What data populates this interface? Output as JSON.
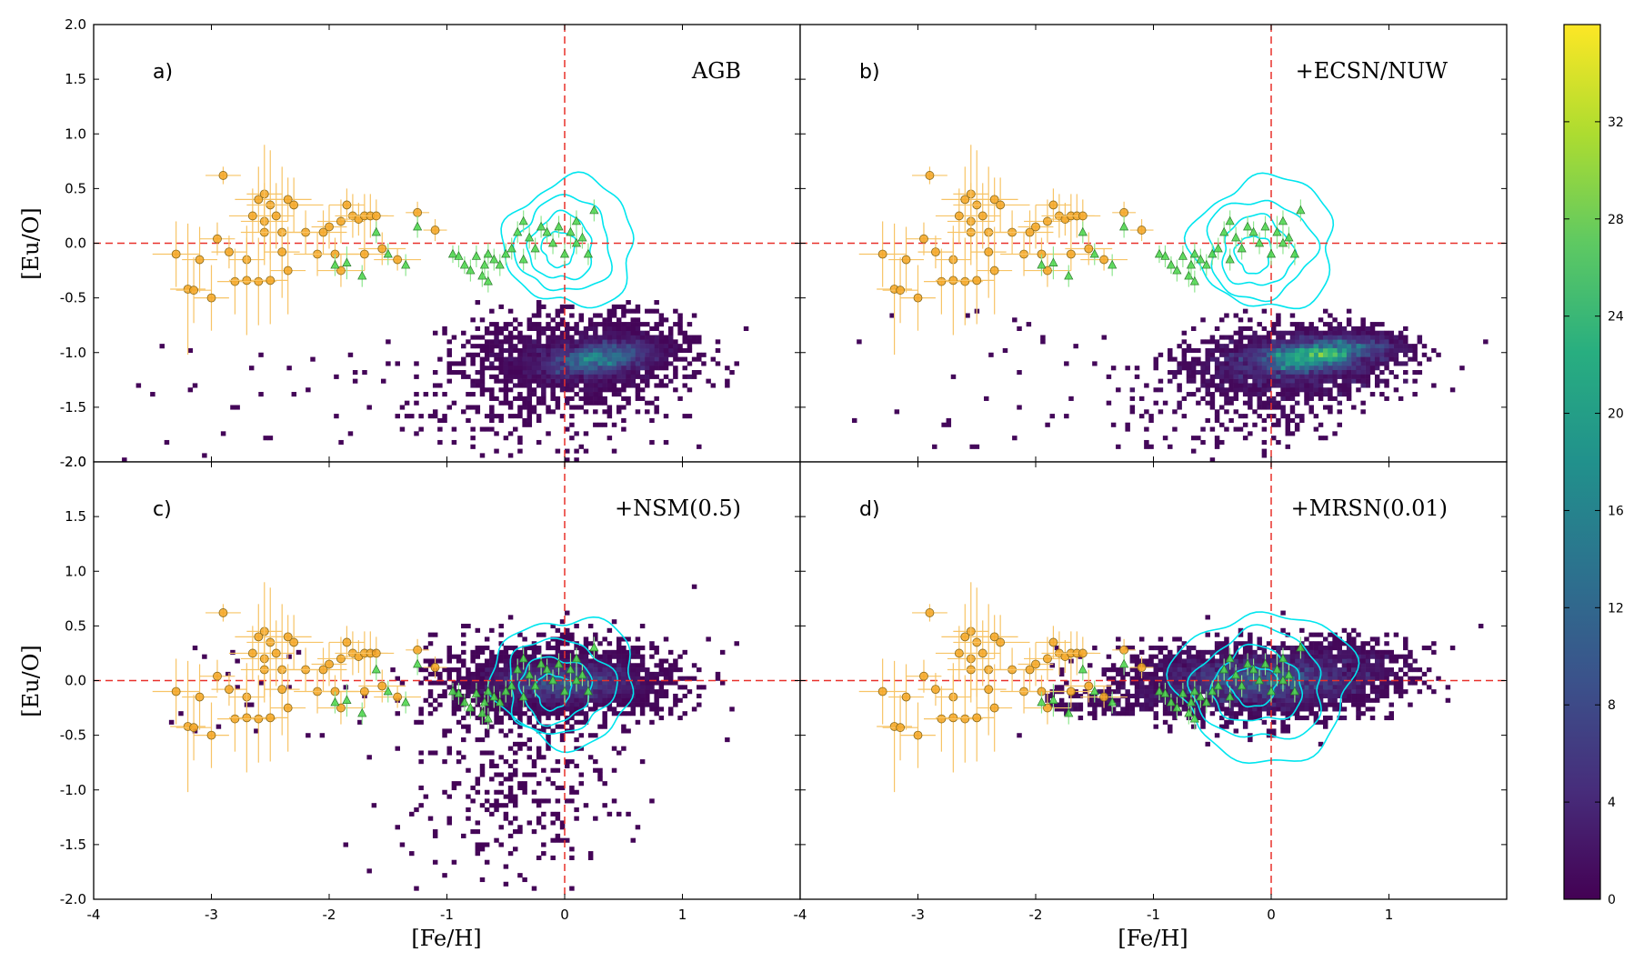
{
  "chart_data": {
    "type": "scatter",
    "layout": "2x2 panels with shared axes and a vertical colorbar",
    "xlabel": "[Fe/H]",
    "ylabel": "[Eu/O]",
    "xlim": [
      -4,
      2
    ],
    "ylim": [
      -2,
      2
    ],
    "x_ticks": [
      -4,
      -3,
      -2,
      -1,
      0,
      1
    ],
    "x_tick_labels": [
      "-4",
      "-3",
      "-2",
      "-1",
      "0",
      "1"
    ],
    "y_ticks": [
      -2,
      -1.5,
      -1,
      -0.5,
      0,
      0.5,
      1,
      1.5,
      2
    ],
    "y_tick_labels": [
      "-2.0",
      "-1.5",
      "-1.0",
      "-0.5",
      "0.0",
      "0.5",
      "1.0",
      "1.5",
      "2.0"
    ],
    "reference_lines": {
      "x": 0,
      "y": 0,
      "color": "#e8312a",
      "style": "dashed"
    },
    "colorbar": {
      "min": 0,
      "max": 36,
      "ticks": [
        0,
        4,
        8,
        12,
        16,
        20,
        24,
        28,
        32
      ],
      "colormap": "viridis",
      "colors": [
        "#440154",
        "#472d7b",
        "#3b528b",
        "#2c728e",
        "#21918c",
        "#28ae80",
        "#5ec962",
        "#addc30",
        "#fde725"
      ]
    },
    "colors": {
      "halo_points": "#f5a623",
      "halo_errorbars": "#f7c466",
      "disk_points": "#4cd64c",
      "disk_errorbars": "#8ee68e",
      "contours": "#00e5ee"
    },
    "observations": {
      "halo_stars": [
        {
          "x": -2.9,
          "y": 0.62,
          "xerr": 0.15,
          "yerr": 0.08
        },
        {
          "x": -2.6,
          "y": 0.4,
          "xerr": 0.2,
          "yerr": 0.3
        },
        {
          "x": -2.55,
          "y": 0.45,
          "xerr": 0.15,
          "yerr": 0.45
        },
        {
          "x": -2.5,
          "y": 0.35,
          "xerr": 0.2,
          "yerr": 0.5
        },
        {
          "x": -2.35,
          "y": 0.4,
          "xerr": 0.2,
          "yerr": 0.2
        },
        {
          "x": -2.3,
          "y": 0.35,
          "xerr": 0.25,
          "yerr": 0.25
        },
        {
          "x": -2.65,
          "y": 0.25,
          "xerr": 0.2,
          "yerr": 0.25
        },
        {
          "x": -2.55,
          "y": 0.2,
          "xerr": 0.2,
          "yerr": 0.35
        },
        {
          "x": -2.45,
          "y": 0.25,
          "xerr": 0.15,
          "yerr": 0.3
        },
        {
          "x": -2.55,
          "y": 0.1,
          "xerr": 0.2,
          "yerr": 0.3
        },
        {
          "x": -2.4,
          "y": 0.1,
          "xerr": 0.2,
          "yerr": 0.6
        },
        {
          "x": -2.2,
          "y": 0.1,
          "xerr": 0.2,
          "yerr": 0.2
        },
        {
          "x": -2.05,
          "y": 0.1,
          "xerr": 0.2,
          "yerr": 0.2
        },
        {
          "x": -2.0,
          "y": 0.15,
          "xerr": 0.15,
          "yerr": 0.2
        },
        {
          "x": -1.9,
          "y": 0.2,
          "xerr": 0.2,
          "yerr": 0.2
        },
        {
          "x": -1.85,
          "y": 0.35,
          "xerr": 0.15,
          "yerr": 0.15
        },
        {
          "x": -1.8,
          "y": 0.25,
          "xerr": 0.15,
          "yerr": 0.2
        },
        {
          "x": -1.75,
          "y": 0.22,
          "xerr": 0.15,
          "yerr": 0.15
        },
        {
          "x": -1.7,
          "y": 0.25,
          "xerr": 0.15,
          "yerr": 0.2
        },
        {
          "x": -1.65,
          "y": 0.25,
          "xerr": 0.15,
          "yerr": 0.2
        },
        {
          "x": -1.6,
          "y": 0.25,
          "xerr": 0.15,
          "yerr": 0.15
        },
        {
          "x": -1.25,
          "y": 0.28,
          "xerr": 0.1,
          "yerr": 0.1
        },
        {
          "x": -1.1,
          "y": 0.12,
          "xerr": 0.1,
          "yerr": 0.1
        },
        {
          "x": -2.95,
          "y": 0.04,
          "xerr": 0.15,
          "yerr": 0.15
        },
        {
          "x": -2.85,
          "y": -0.08,
          "xerr": 0.15,
          "yerr": 0.15
        },
        {
          "x": -3.3,
          "y": -0.1,
          "xerr": 0.2,
          "yerr": 0.3
        },
        {
          "x": -3.1,
          "y": -0.15,
          "xerr": 0.15,
          "yerr": 0.3
        },
        {
          "x": -2.7,
          "y": -0.15,
          "xerr": 0.15,
          "yerr": 0.2
        },
        {
          "x": -2.4,
          "y": -0.08,
          "xerr": 0.15,
          "yerr": 0.2
        },
        {
          "x": -2.1,
          "y": -0.1,
          "xerr": 0.2,
          "yerr": 0.2
        },
        {
          "x": -1.95,
          "y": -0.1,
          "xerr": 0.2,
          "yerr": 0.15
        },
        {
          "x": -1.9,
          "y": -0.25,
          "xerr": 0.2,
          "yerr": 0.15
        },
        {
          "x": -1.7,
          "y": -0.1,
          "xerr": 0.2,
          "yerr": 0.15
        },
        {
          "x": -1.55,
          "y": -0.05,
          "xerr": 0.2,
          "yerr": 0.15
        },
        {
          "x": -1.42,
          "y": -0.15,
          "xerr": 0.2,
          "yerr": 0.1
        },
        {
          "x": -3.2,
          "y": -0.42,
          "xerr": 0.15,
          "yerr": 0.6
        },
        {
          "x": -3.15,
          "y": -0.43,
          "xerr": 0.15,
          "yerr": 0.3
        },
        {
          "x": -3.0,
          "y": -0.5,
          "xerr": 0.15,
          "yerr": 0.3
        },
        {
          "x": -2.8,
          "y": -0.35,
          "xerr": 0.15,
          "yerr": 0.3
        },
        {
          "x": -2.7,
          "y": -0.34,
          "xerr": 0.15,
          "yerr": 0.5
        },
        {
          "x": -2.6,
          "y": -0.35,
          "xerr": 0.15,
          "yerr": 0.4
        },
        {
          "x": -2.5,
          "y": -0.34,
          "xerr": 0.15,
          "yerr": 0.4
        },
        {
          "x": -2.35,
          "y": -0.25,
          "xerr": 0.15,
          "yerr": 0.4
        }
      ],
      "disk_stars": [
        {
          "x": -1.5,
          "y": -0.1,
          "yerr": 0.1
        },
        {
          "x": -1.95,
          "y": -0.2,
          "yerr": 0.1
        },
        {
          "x": -1.85,
          "y": -0.18,
          "yerr": 0.15
        },
        {
          "x": -1.72,
          "y": -0.3,
          "yerr": 0.1
        },
        {
          "x": -1.6,
          "y": 0.1,
          "yerr": 0.1
        },
        {
          "x": -1.35,
          "y": -0.2,
          "yerr": 0.1
        },
        {
          "x": -1.25,
          "y": 0.15,
          "yerr": 0.1
        },
        {
          "x": -0.95,
          "y": -0.1,
          "yerr": 0.08
        },
        {
          "x": -0.9,
          "y": -0.12,
          "yerr": 0.1
        },
        {
          "x": -0.85,
          "y": -0.2,
          "yerr": 0.08
        },
        {
          "x": -0.8,
          "y": -0.25,
          "yerr": 0.1
        },
        {
          "x": -0.75,
          "y": -0.12,
          "yerr": 0.1
        },
        {
          "x": -0.7,
          "y": -0.3,
          "yerr": 0.1
        },
        {
          "x": -0.68,
          "y": -0.2,
          "yerr": 0.1
        },
        {
          "x": -0.65,
          "y": -0.1,
          "yerr": 0.1
        },
        {
          "x": -0.6,
          "y": -0.15,
          "yerr": 0.1
        },
        {
          "x": -0.55,
          "y": -0.2,
          "yerr": 0.1
        },
        {
          "x": -0.5,
          "y": -0.1,
          "yerr": 0.1
        },
        {
          "x": -0.45,
          "y": -0.05,
          "yerr": 0.1
        },
        {
          "x": -0.4,
          "y": 0.1,
          "yerr": 0.1
        },
        {
          "x": -0.35,
          "y": 0.2,
          "yerr": 0.1
        },
        {
          "x": -0.3,
          "y": 0.05,
          "yerr": 0.1
        },
        {
          "x": -0.25,
          "y": -0.05,
          "yerr": 0.1
        },
        {
          "x": -0.2,
          "y": 0.15,
          "yerr": 0.1
        },
        {
          "x": -0.15,
          "y": 0.1,
          "yerr": 0.1
        },
        {
          "x": -0.1,
          "y": 0.0,
          "yerr": 0.1
        },
        {
          "x": -0.05,
          "y": 0.15,
          "yerr": 0.1
        },
        {
          "x": 0.0,
          "y": -0.1,
          "yerr": 0.1
        },
        {
          "x": 0.05,
          "y": 0.1,
          "yerr": 0.15
        },
        {
          "x": 0.1,
          "y": 0.0,
          "yerr": 0.1
        },
        {
          "x": 0.15,
          "y": 0.05,
          "yerr": 0.1
        },
        {
          "x": 0.2,
          "y": -0.1,
          "yerr": 0.1
        },
        {
          "x": 0.25,
          "y": 0.3,
          "yerr": 0.1
        },
        {
          "x": -0.65,
          "y": -0.35,
          "yerr": 0.1
        },
        {
          "x": -0.35,
          "y": -0.15,
          "yerr": 0.1
        },
        {
          "x": 0.1,
          "y": 0.2,
          "yerr": 0.1
        }
      ]
    },
    "panels": [
      {
        "letter": "a)",
        "model": "AGB",
        "contours": [
          {
            "cx": 0.05,
            "cy": 0.0,
            "rx": 0.55,
            "ry": 0.58
          },
          {
            "cx": 0.0,
            "cy": -0.02,
            "rx": 0.4,
            "ry": 0.43
          },
          {
            "cx": -0.03,
            "cy": -0.04,
            "rx": 0.27,
            "ry": 0.3
          },
          {
            "cx": -0.05,
            "cy": -0.05,
            "rx": 0.14,
            "ry": 0.16
          }
        ],
        "density": {
          "core": {
            "cx": 0.3,
            "cy": -1.05,
            "sx": 0.25,
            "sy": 0.08,
            "tilt": 0.12,
            "n": 2600
          },
          "spread": {
            "cx": 0.15,
            "cy": -1.05,
            "sx": 0.45,
            "sy": 0.18,
            "n": 1600
          },
          "tail": {
            "cx": -0.3,
            "cy": -1.45,
            "sx": 0.6,
            "sy": 0.3,
            "n": 260
          },
          "sparse": {
            "xmin": -3.8,
            "xmax": -0.5,
            "ymin": -2.0,
            "ymax": -0.8,
            "n": 30
          },
          "peak_value": 20
        }
      },
      {
        "letter": "b)",
        "model": "+ECSN/NUW",
        "contours": [
          {
            "cx": -0.05,
            "cy": 0.0,
            "rx": 0.6,
            "ry": 0.6
          },
          {
            "cx": -0.1,
            "cy": -0.05,
            "rx": 0.45,
            "ry": 0.45
          },
          {
            "cx": -0.12,
            "cy": -0.08,
            "rx": 0.3,
            "ry": 0.32
          },
          {
            "cx": -0.15,
            "cy": -0.1,
            "rx": 0.15,
            "ry": 0.17
          }
        ],
        "density": {
          "core": {
            "cx": 0.4,
            "cy": -1.02,
            "sx": 0.3,
            "sy": 0.08,
            "tilt": 0.12,
            "n": 3000
          },
          "spread": {
            "cx": 0.2,
            "cy": -1.1,
            "sx": 0.45,
            "sy": 0.16,
            "n": 1600
          },
          "tail": {
            "cx": -0.3,
            "cy": -1.45,
            "sx": 0.55,
            "sy": 0.28,
            "n": 230
          },
          "sparse": {
            "xmin": -3.8,
            "xmax": -0.5,
            "ymin": -2.0,
            "ymax": -0.6,
            "n": 30
          },
          "peak_value": 30
        }
      },
      {
        "letter": "c)",
        "model": "+NSM(0.5)",
        "contours": [
          {
            "cx": 0.0,
            "cy": 0.0,
            "rx": 0.6,
            "ry": 0.58
          },
          {
            "cx": -0.05,
            "cy": -0.05,
            "rx": 0.45,
            "ry": 0.43
          },
          {
            "cx": -0.08,
            "cy": -0.08,
            "rx": 0.3,
            "ry": 0.3
          },
          {
            "cx": -0.1,
            "cy": -0.1,
            "rx": 0.15,
            "ry": 0.16
          }
        ],
        "density": {
          "core": {
            "cx": 0.0,
            "cy": -0.02,
            "sx": 0.35,
            "sy": 0.1,
            "tilt": 0.0,
            "n": 3000
          },
          "spread": {
            "cx": -0.1,
            "cy": 0.0,
            "sx": 0.5,
            "sy": 0.2,
            "n": 1200
          },
          "tail": {
            "cx": -0.4,
            "cy": -0.9,
            "sx": 0.45,
            "sy": 0.5,
            "n": 320
          },
          "sparse": {
            "xmin": -3.5,
            "xmax": -0.5,
            "ymin": -0.5,
            "ymax": 0.3,
            "n": 30
          },
          "peak_value": 12
        }
      },
      {
        "letter": "d)",
        "model": "+MRSN(0.01)",
        "contours": [
          {
            "cx": -0.05,
            "cy": -0.05,
            "rx": 0.75,
            "ry": 0.68
          },
          {
            "cx": -0.1,
            "cy": -0.05,
            "rx": 0.55,
            "ry": 0.5
          },
          {
            "cx": -0.12,
            "cy": -0.05,
            "rx": 0.38,
            "ry": 0.34
          },
          {
            "cx": -0.15,
            "cy": -0.05,
            "rx": 0.2,
            "ry": 0.18
          }
        ],
        "density": {
          "core": {
            "cx": -0.1,
            "cy": 0.0,
            "sx": 0.45,
            "sy": 0.12,
            "tilt": 0.0,
            "n": 2600
          },
          "spread": {
            "cx": -0.2,
            "cy": 0.0,
            "sx": 0.6,
            "sy": 0.18,
            "n": 1200
          },
          "tail": {
            "cx": 0.6,
            "cy": 0.15,
            "sx": 0.3,
            "sy": 0.12,
            "n": 400
          },
          "sparse": {
            "xmin": -1.9,
            "xmax": -0.8,
            "ymin": -0.3,
            "ymax": -0.1,
            "n": 120
          },
          "peak_value": 14
        }
      }
    ]
  }
}
